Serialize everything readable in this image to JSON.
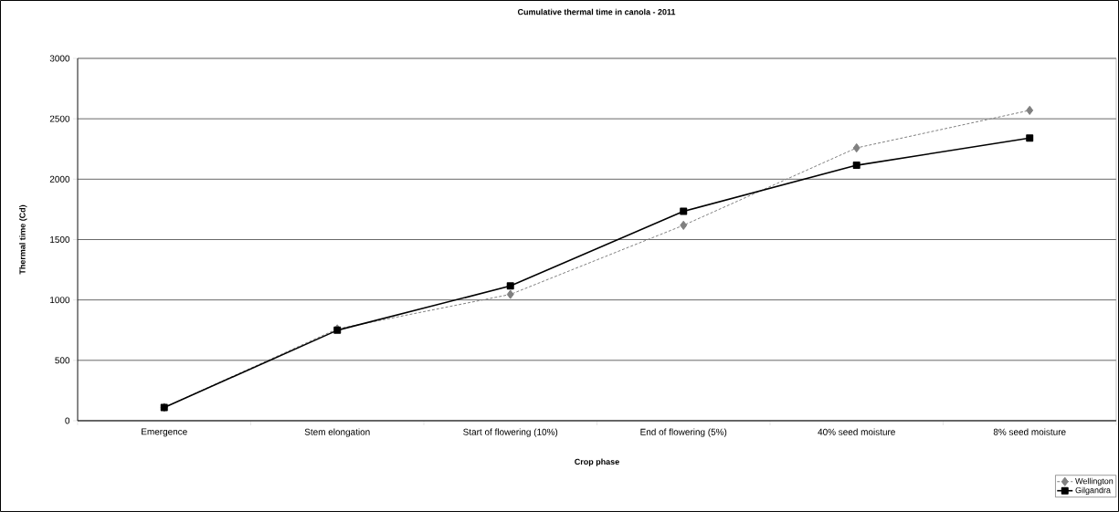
{
  "chart_data": {
    "type": "line",
    "title": "Cumulative thermal time in canola - 2011",
    "xlabel": "Crop phase",
    "ylabel": "Thermal time (Cd)",
    "categories": [
      "Emergence",
      "Stem elongation",
      "Start of flowering (10%)",
      "End of flowering (5%)",
      "40% seed moisture",
      "8% seed moisture"
    ],
    "series": [
      {
        "name": "Wellington",
        "color": "#808080",
        "marker": "diamond",
        "line_style": "dashed",
        "values": [
          110,
          760,
          1046,
          1618,
          2259,
          2570
        ]
      },
      {
        "name": "Gilgandra",
        "color": "#000000",
        "marker": "square",
        "line_style": "solid",
        "values": [
          110,
          749,
          1116,
          1734,
          2115,
          2340
        ]
      }
    ],
    "ylim": [
      0,
      3000
    ],
    "yticks": [
      0,
      500,
      1000,
      1500,
      2000,
      2500,
      3000
    ],
    "grid": "y",
    "legend": "bottom right"
  }
}
